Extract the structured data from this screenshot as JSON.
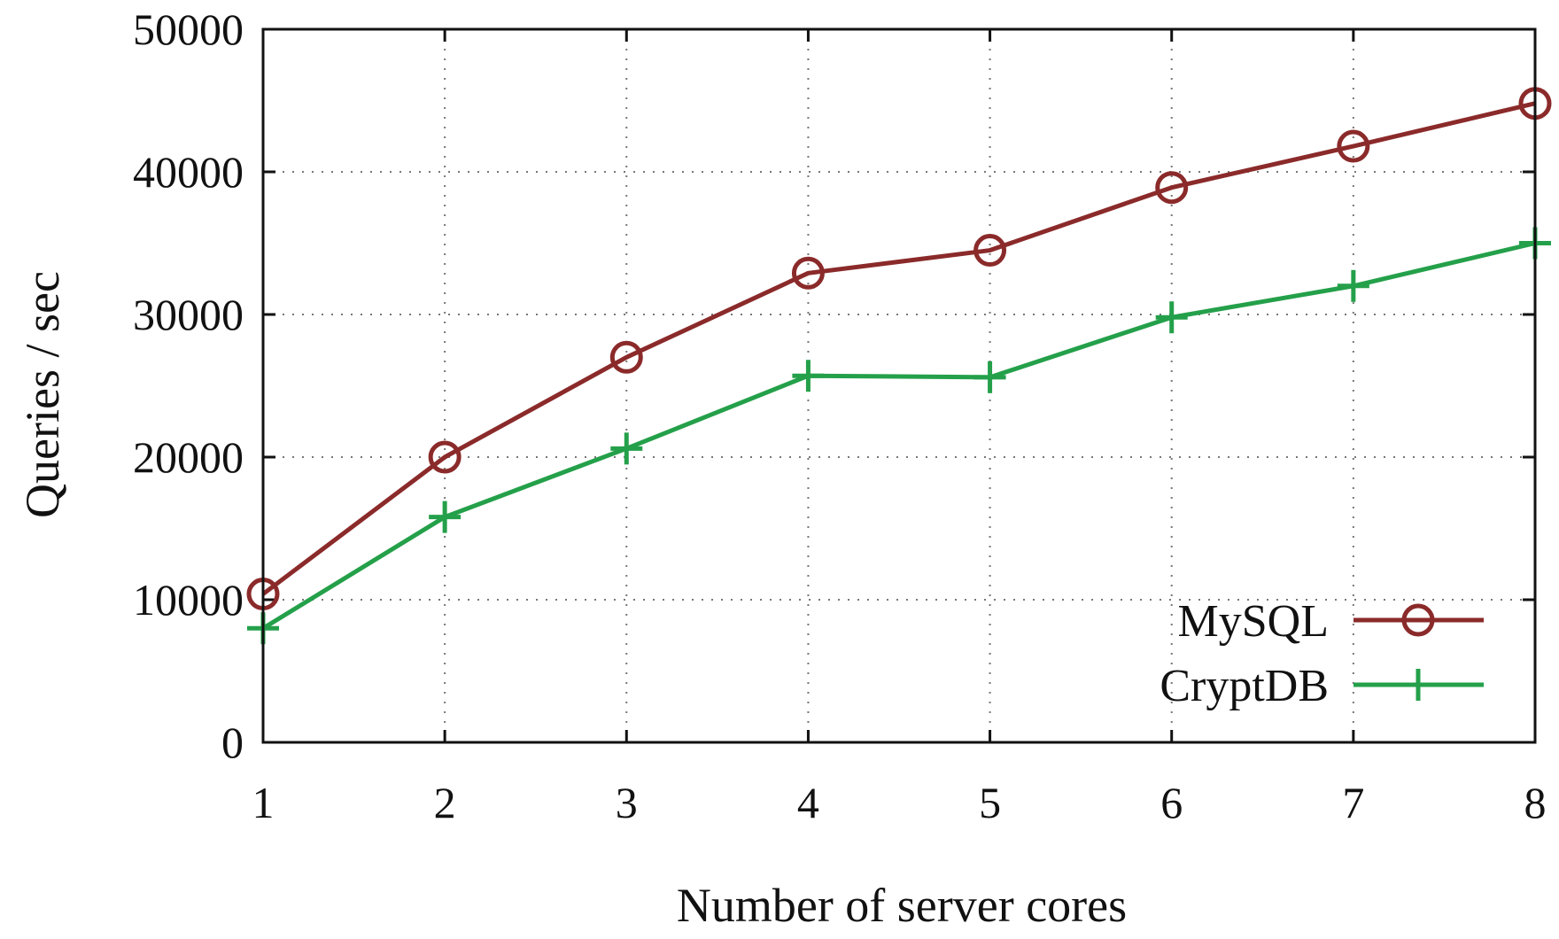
{
  "chart_data": {
    "type": "line",
    "title": "",
    "xlabel": "Number of server cores",
    "ylabel": "Queries / sec",
    "x": [
      1,
      2,
      3,
      4,
      5,
      6,
      7,
      8
    ],
    "xlim": [
      1,
      8
    ],
    "ylim": [
      0,
      50000
    ],
    "xticks": [
      "1",
      "2",
      "3",
      "4",
      "5",
      "6",
      "7",
      "8"
    ],
    "yticks": [
      "0",
      "10000",
      "20000",
      "30000",
      "40000",
      "50000"
    ],
    "grid": true,
    "legend_position": "bottom-right",
    "series": [
      {
        "name": "MySQL",
        "values": [
          10400,
          20000,
          27000,
          32900,
          34500,
          38900,
          41800,
          44800
        ],
        "color": "#8b2a2a",
        "marker": "circle"
      },
      {
        "name": "CryptDB",
        "values": [
          8000,
          15800,
          20600,
          25700,
          25600,
          29800,
          32000,
          35000
        ],
        "color": "#24a04a",
        "marker": "plus"
      }
    ]
  }
}
